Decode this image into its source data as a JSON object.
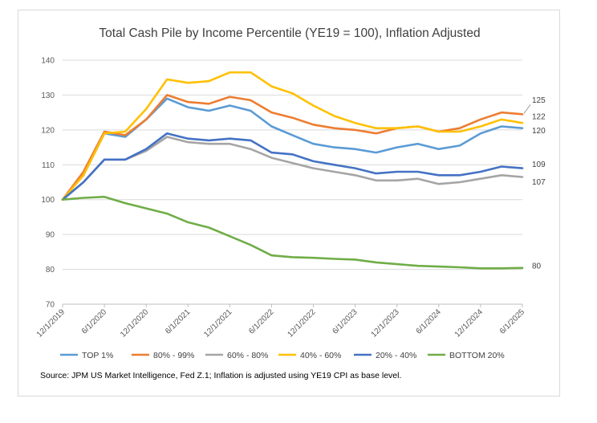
{
  "chart_data": {
    "type": "line",
    "title": "Total Cash Pile by Income Percentile (YE19 = 100), Inflation Adjusted",
    "ylim": [
      70,
      140
    ],
    "yticks": [
      70,
      80,
      90,
      100,
      110,
      120,
      130,
      140
    ],
    "grid": true,
    "legend_position": "bottom",
    "x_ticks": [
      "12/1/2019",
      "6/1/2020",
      "12/1/2020",
      "6/1/2021",
      "12/1/2021",
      "6/1/2022",
      "12/1/2022",
      "6/1/2023",
      "12/1/2023",
      "6/1/2024",
      "12/1/2024",
      "6/1/2025"
    ],
    "x": [
      "2019-12",
      "2020-03",
      "2020-06",
      "2020-09",
      "2020-12",
      "2021-03",
      "2021-06",
      "2021-09",
      "2021-12",
      "2022-03",
      "2022-06",
      "2022-09",
      "2022-12",
      "2023-03",
      "2023-06",
      "2023-09",
      "2023-12",
      "2024-03",
      "2024-06",
      "2024-09",
      "2024-12",
      "2025-03",
      "2025-06"
    ],
    "series": [
      {
        "name": "TOP 1%",
        "color": "#5b9bd5",
        "end_label": "120",
        "values": [
          100,
          107,
          119,
          118,
          123,
          129,
          126.5,
          125.5,
          127,
          125.5,
          121,
          118.5,
          116,
          115,
          114.5,
          113.5,
          115,
          116,
          114.5,
          115.5,
          119,
          121,
          120.5
        ]
      },
      {
        "name": "80% - 99%",
        "color": "#ed7d31",
        "end_label": "125",
        "values": [
          100,
          108,
          119.5,
          118.5,
          123,
          130,
          128,
          127.5,
          129.5,
          128.5,
          125,
          123.5,
          121.5,
          120.5,
          120,
          119,
          120.5,
          121,
          119.5,
          120.5,
          123,
          125,
          124.5
        ]
      },
      {
        "name": "60% - 80%",
        "color": "#a5a5a5",
        "end_label": "107",
        "values": [
          100,
          105,
          111.5,
          111.5,
          114,
          118,
          116.5,
          116,
          116,
          114.5,
          112,
          110.5,
          109,
          108,
          107,
          105.5,
          105.5,
          106,
          104.5,
          105,
          106,
          107,
          106.5
        ]
      },
      {
        "name": "40% - 60%",
        "color": "#ffc000",
        "end_label": "122",
        "values": [
          100,
          107,
          119,
          119.5,
          126,
          134.5,
          133.5,
          134,
          136.5,
          136.5,
          132.5,
          130.5,
          127,
          124,
          122,
          120.5,
          120.5,
          121,
          119.5,
          119.5,
          121,
          123,
          122
        ]
      },
      {
        "name": "20% - 40%",
        "color": "#4472c4",
        "end_label": "109",
        "values": [
          100,
          105,
          111.5,
          111.5,
          114.5,
          119,
          117.5,
          117,
          117.5,
          117,
          113.5,
          113,
          111,
          110,
          109,
          107.5,
          108,
          108,
          107,
          107,
          108,
          109.5,
          109
        ]
      },
      {
        "name": "BOTTOM 20%",
        "color": "#70ad47",
        "end_label": "80",
        "values": [
          100,
          100.5,
          100.8,
          99,
          97.5,
          96,
          93.5,
          92,
          89.5,
          87,
          84,
          83.5,
          83.3,
          83,
          82.8,
          82,
          81.5,
          81,
          80.8,
          80.6,
          80.3,
          80.3,
          80.4
        ]
      }
    ],
    "source": "Source: JPM US Market Intelligence, Fed Z.1; Inflation is adjusted using YE19 CPI as base level."
  }
}
